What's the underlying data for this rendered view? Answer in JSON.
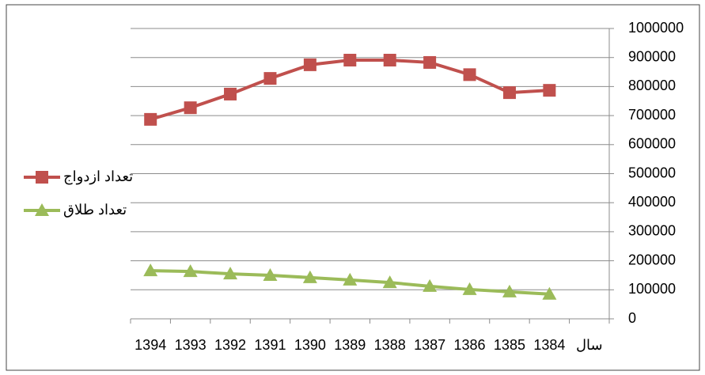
{
  "chart_data": {
    "type": "line",
    "categories": [
      "1394",
      "1393",
      "1392",
      "1391",
      "1390",
      "1389",
      "1388",
      "1387",
      "1386",
      "1385",
      "1384",
      "سال"
    ],
    "series": [
      {
        "name": "تعداد ازدواج",
        "color": "#c0504d",
        "marker": "square",
        "values": [
          687000,
          727000,
          774000,
          828000,
          875000,
          891000,
          891000,
          883000,
          841000,
          779000,
          787000,
          null
        ]
      },
      {
        "name": "تعداد طلاق",
        "color": "#9bbb59",
        "marker": "triangle",
        "values": [
          166000,
          163000,
          155000,
          150000,
          142000,
          134000,
          125000,
          112000,
          101000,
          93000,
          85000,
          null
        ]
      }
    ],
    "ylim": [
      0,
      1000000
    ],
    "yticks": [
      0,
      100000,
      200000,
      300000,
      400000,
      500000,
      600000,
      700000,
      800000,
      900000,
      1000000
    ],
    "grid": true,
    "y_axis_side": "right",
    "legend": "left"
  }
}
